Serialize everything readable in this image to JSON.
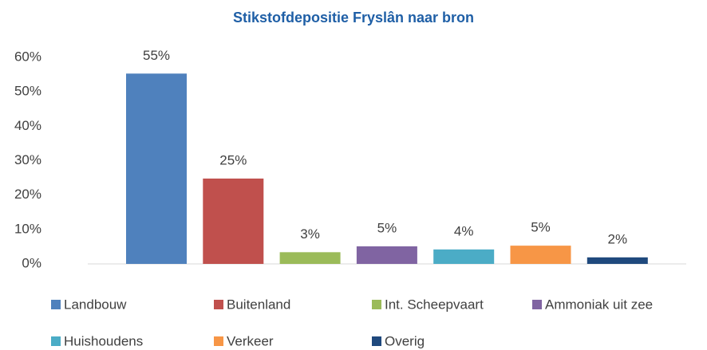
{
  "chart_data": {
    "type": "bar",
    "title": "Stikstofdepositie Fryslân naar bron",
    "ylim": [
      0,
      60
    ],
    "yticks": [
      {
        "value": 0,
        "label": "0%"
      },
      {
        "value": 10,
        "label": "10%"
      },
      {
        "value": 20,
        "label": "20%"
      },
      {
        "value": 30,
        "label": "30%"
      },
      {
        "value": 40,
        "label": "40%"
      },
      {
        "value": 50,
        "label": "50%"
      },
      {
        "value": 60,
        "label": "60%"
      }
    ],
    "grid": false,
    "legend": "bottom",
    "series": [
      {
        "name": "Landbouw",
        "color": "#4f81bd",
        "values": [
          55.3
        ],
        "value_labels": [
          "55%"
        ]
      },
      {
        "name": "Buitenland",
        "color": "#c0504d",
        "values": [
          24.8
        ],
        "value_labels": [
          "25%"
        ]
      },
      {
        "name": "Int. Scheepvaart",
        "color": "#9bbb59",
        "values": [
          3.4
        ],
        "value_labels": [
          "3%"
        ]
      },
      {
        "name": "Ammoniak uit zee",
        "color": "#8064a2",
        "values": [
          5.1
        ],
        "value_labels": [
          "5%"
        ]
      },
      {
        "name": "Huishoudens",
        "color": "#4bacc6",
        "values": [
          4.2
        ],
        "value_labels": [
          "4%"
        ]
      },
      {
        "name": "Verkeer",
        "color": "#f79646",
        "values": [
          5.3
        ],
        "value_labels": [
          "5%"
        ]
      },
      {
        "name": "Overig",
        "color": "#1f497d",
        "values": [
          1.9
        ],
        "value_labels": [
          "2%"
        ]
      }
    ]
  }
}
